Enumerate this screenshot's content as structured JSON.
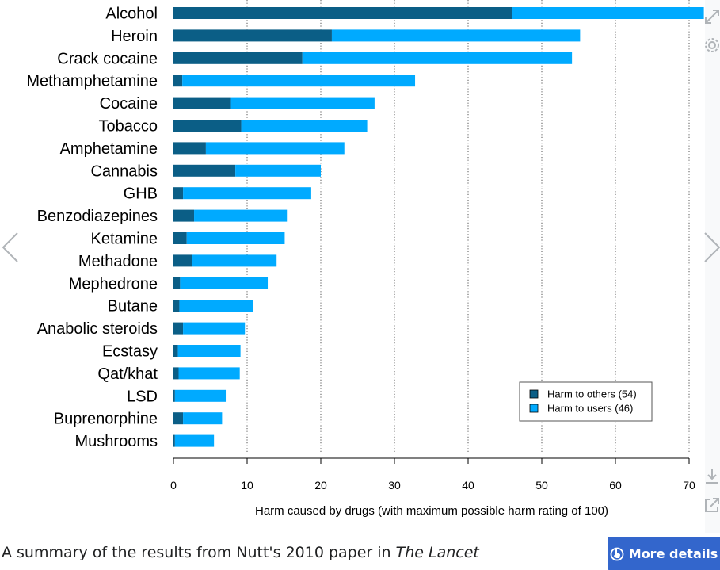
{
  "chart_data": {
    "type": "bar",
    "stacked": true,
    "orientation": "horizontal",
    "categories": [
      "Alcohol",
      "Heroin",
      "Crack cocaine",
      "Methamphetamine",
      "Cocaine",
      "Tobacco",
      "Amphetamine",
      "Cannabis",
      "GHB",
      "Benzodiazepines",
      "Ketamine",
      "Methadone",
      "Mephedrone",
      "Butane",
      "Anabolic steroids",
      "Ecstasy",
      "Qat/khat",
      "LSD",
      "Buprenorphine",
      "Mushrooms"
    ],
    "series": [
      {
        "name": "Harm to others (54)",
        "color": "#0b5e86",
        "values": [
          46,
          21.5,
          17.5,
          1.2,
          7.8,
          9.2,
          4.4,
          8.4,
          1.3,
          2.8,
          1.8,
          2.5,
          0.9,
          0.8,
          1.3,
          0.6,
          0.7,
          0.2,
          1.3,
          0.2
        ]
      },
      {
        "name": "Harm to users (46)",
        "color": "#00aaff",
        "values": [
          26,
          33.7,
          36.6,
          31.6,
          19.5,
          17.1,
          18.8,
          11.6,
          17.4,
          12.6,
          13.3,
          11.5,
          11.9,
          10.0,
          8.4,
          8.5,
          8.3,
          6.9,
          5.3,
          5.3
        ]
      }
    ],
    "xlabel": "Harm caused by drugs (with maximum possible harm rating of 100)",
    "ylabel": "",
    "xlim": [
      0,
      72
    ],
    "xticks": [
      0,
      10,
      20,
      30,
      40,
      50,
      60,
      70
    ],
    "grid": true,
    "legend": "bottom-right"
  },
  "caption": {
    "prefix": "A summary of the results from Nutt's 2010 paper in ",
    "journal": "The Lancet"
  },
  "buttons": {
    "more_details": "More details"
  },
  "icons": {
    "prev": "chevron-left-icon",
    "next": "chevron-right-icon",
    "expand": "expand-icon",
    "settings": "gear-icon",
    "download": "download-icon",
    "open": "external-link-icon",
    "details": "pointer-icon"
  }
}
